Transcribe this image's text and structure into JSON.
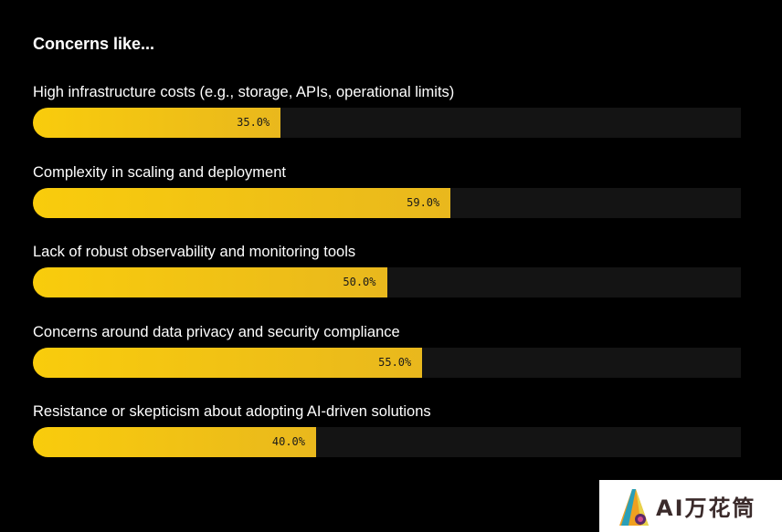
{
  "chart_data": {
    "type": "bar",
    "orientation": "horizontal",
    "title": "Concerns like...",
    "categories": [
      "High infrastructure costs (e.g., storage, APIs, operational limits)",
      "Complexity in scaling and deployment",
      "Lack of robust observability and monitoring tools",
      "Concerns around data privacy and security compliance",
      "Resistance or skepticism about adopting AI-driven solutions"
    ],
    "values": [
      35.0,
      59.0,
      50.0,
      55.0,
      40.0
    ],
    "value_labels": [
      "35.0%",
      "59.0%",
      "50.0%",
      "55.0%",
      "40.0%"
    ],
    "xlim": [
      0,
      100
    ],
    "grid": false,
    "colors": {
      "background": "#000000",
      "track": "#141414",
      "bar_start": "#f9cc0c",
      "bar_end": "#e9b81d",
      "text": "#ffffff"
    }
  },
  "watermark": {
    "text": "AI万花筒",
    "logo_icon": "kaleidoscope-logo-icon"
  }
}
